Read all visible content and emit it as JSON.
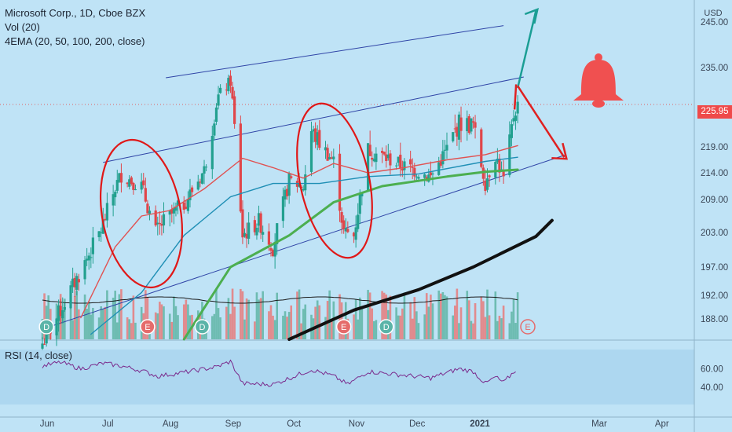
{
  "legend": {
    "symbol_line": "Microsoft Corp., 1D, Cboe BZX",
    "volume_line": "Vol (20)",
    "ema_line": "4EMA (20, 50, 100, 200, close)",
    "rsi_line": "RSI (14, close)"
  },
  "currency_label": "USD",
  "last_price_label": "225.95",
  "chart_data": [
    {
      "type": "candlestick",
      "panel": "price",
      "title": "Microsoft Corp., 1D, Cboe BZX",
      "x_ticks": [
        "Jun",
        "Jul",
        "Aug",
        "Sep",
        "Oct",
        "Nov",
        "Dec",
        "2021",
        "Mar",
        "Apr"
      ],
      "y_ticks": [
        188,
        192,
        197,
        203,
        209,
        214,
        219,
        225,
        235,
        245
      ],
      "y_tick_labels": [
        "188.00",
        "192.00",
        "197.00",
        "203.00",
        "209.00",
        "214.00",
        "219.00",
        "225.00",
        "235.00",
        "245.00"
      ],
      "ylim": [
        184,
        248
      ],
      "last_price": 225.95,
      "price_path": [
        {
          "x": "2020-06-01",
          "close": 183.2
        },
        {
          "x": "2020-06-10",
          "close": 189.5
        },
        {
          "x": "2020-06-20",
          "close": 196.3
        },
        {
          "x": "2020-06-30",
          "close": 203.5
        },
        {
          "x": "2020-07-07",
          "close": 211.2
        },
        {
          "x": "2020-07-10",
          "close": 213.7
        },
        {
          "x": "2020-07-20",
          "close": 211.5
        },
        {
          "x": "2020-07-27",
          "close": 203.0
        },
        {
          "x": "2020-07-31",
          "close": 205.0
        },
        {
          "x": "2020-08-10",
          "close": 208.2
        },
        {
          "x": "2020-08-20",
          "close": 214.5
        },
        {
          "x": "2020-08-27",
          "close": 228.0
        },
        {
          "x": "2020-09-02",
          "close": 231.6
        },
        {
          "x": "2020-09-08",
          "close": 202.5
        },
        {
          "x": "2020-09-16",
          "close": 205.0
        },
        {
          "x": "2020-09-23",
          "close": 200.5
        },
        {
          "x": "2020-10-01",
          "close": 212.5
        },
        {
          "x": "2020-10-08",
          "close": 211.5
        },
        {
          "x": "2020-10-12",
          "close": 221.4
        },
        {
          "x": "2020-10-16",
          "close": 219.7
        },
        {
          "x": "2020-10-23",
          "close": 216.2
        },
        {
          "x": "2020-10-28",
          "close": 203.0
        },
        {
          "x": "2020-11-02",
          "close": 202.5
        },
        {
          "x": "2020-11-09",
          "close": 218.4
        },
        {
          "x": "2020-11-16",
          "close": 217.2
        },
        {
          "x": "2020-11-27",
          "close": 215.2
        },
        {
          "x": "2020-12-04",
          "close": 214.3
        },
        {
          "x": "2020-12-10",
          "close": 213.2
        },
        {
          "x": "2020-12-18",
          "close": 218.6
        },
        {
          "x": "2020-12-24",
          "close": 222.7
        },
        {
          "x": "2020-12-31",
          "close": 222.4
        },
        {
          "x": "2021-01-06",
          "close": 212.2
        },
        {
          "x": "2021-01-11",
          "close": 217.5
        },
        {
          "x": "2021-01-15",
          "close": 212.6
        },
        {
          "x": "2021-01-20",
          "close": 224.0
        },
        {
          "x": "2021-01-22",
          "close": 225.95
        }
      ],
      "ema_series": [
        {
          "period": 20,
          "color": "#e05252",
          "values": [
            {
              "x": "2020-06-20",
              "close": 188.2
            },
            {
              "x": "2020-07-07",
              "close": 200.5
            },
            {
              "x": "2020-07-20",
              "close": 206.0
            },
            {
              "x": "2020-08-03",
              "close": 207.0
            },
            {
              "x": "2020-08-20",
              "close": 211.0
            },
            {
              "x": "2020-09-08",
              "close": 216.8
            },
            {
              "x": "2020-09-23",
              "close": 215.0
            },
            {
              "x": "2020-10-08",
              "close": 213.0
            },
            {
              "x": "2020-10-23",
              "close": 215.8
            },
            {
              "x": "2020-11-09",
              "close": 214.0
            },
            {
              "x": "2020-11-27",
              "close": 215.0
            },
            {
              "x": "2020-12-18",
              "close": 216.5
            },
            {
              "x": "2021-01-06",
              "close": 217.5
            },
            {
              "x": "2021-01-22",
              "close": 219.2
            }
          ]
        },
        {
          "period": 50,
          "color": "#1f8fb5",
          "values": [
            {
              "x": "2020-06-25",
              "close": 185.0
            },
            {
              "x": "2020-07-20",
              "close": 192.5
            },
            {
              "x": "2020-08-10",
              "close": 202.5
            },
            {
              "x": "2020-09-02",
              "close": 209.5
            },
            {
              "x": "2020-09-23",
              "close": 212.0
            },
            {
              "x": "2020-10-16",
              "close": 212.0
            },
            {
              "x": "2020-11-09",
              "close": 213.3
            },
            {
              "x": "2020-12-04",
              "close": 213.8
            },
            {
              "x": "2021-01-06",
              "close": 216.2
            },
            {
              "x": "2021-01-22",
              "close": 217.0
            }
          ]
        },
        {
          "period": 100,
          "color": "#4caf50",
          "values": [
            {
              "x": "2020-08-10",
              "close": 184.0
            },
            {
              "x": "2020-09-02",
              "close": 197.0
            },
            {
              "x": "2020-10-01",
              "close": 202.5
            },
            {
              "x": "2020-10-23",
              "close": 208.5
            },
            {
              "x": "2020-11-16",
              "close": 211.5
            },
            {
              "x": "2020-12-18",
              "close": 213.3
            },
            {
              "x": "2021-01-06",
              "close": 214.2
            },
            {
              "x": "2021-01-22",
              "close": 214.6
            }
          ]
        },
        {
          "period": 200,
          "color": "#111111",
          "values": [
            {
              "x": "2020-10-01",
              "close": 184.0
            },
            {
              "x": "2020-11-02",
              "close": 189.5
            },
            {
              "x": "2020-12-04",
              "close": 193.0
            },
            {
              "x": "2020-12-31",
              "close": 197.0
            },
            {
              "x": "2021-01-31",
              "close": 202.3
            },
            {
              "x": "2021-02-08",
              "close": 205.2
            }
          ]
        }
      ]
    },
    {
      "type": "bar",
      "panel": "volume",
      "title": "Vol (20)",
      "event_markers": [
        {
          "label": "D",
          "x": "2020-06-03"
        },
        {
          "label": "E",
          "x": "2020-07-23"
        },
        {
          "label": "D",
          "x": "2020-08-19"
        },
        {
          "label": "E",
          "x": "2020-10-28"
        },
        {
          "label": "D",
          "x": "2020-11-18"
        },
        {
          "label": "E",
          "x": "2021-01-27"
        }
      ]
    },
    {
      "type": "line",
      "panel": "rsi",
      "title": "RSI (14, close)",
      "y_ticks": [
        40,
        60
      ],
      "y_tick_labels": [
        "40.00",
        "60.00"
      ],
      "ylim": [
        28,
        70
      ],
      "band": [
        30,
        70
      ],
      "values": [
        {
          "x": "2020-06-01",
          "y": 63
        },
        {
          "x": "2020-06-10",
          "y": 67
        },
        {
          "x": "2020-06-20",
          "y": 60
        },
        {
          "x": "2020-07-01",
          "y": 66
        },
        {
          "x": "2020-07-10",
          "y": 63
        },
        {
          "x": "2020-07-20",
          "y": 58
        },
        {
          "x": "2020-07-28",
          "y": 52
        },
        {
          "x": "2020-08-10",
          "y": 56
        },
        {
          "x": "2020-08-26",
          "y": 62
        },
        {
          "x": "2020-09-02",
          "y": 68
        },
        {
          "x": "2020-09-08",
          "y": 44
        },
        {
          "x": "2020-09-23",
          "y": 43
        },
        {
          "x": "2020-10-12",
          "y": 59
        },
        {
          "x": "2020-10-23",
          "y": 52
        },
        {
          "x": "2020-10-30",
          "y": 43
        },
        {
          "x": "2020-11-09",
          "y": 57
        },
        {
          "x": "2020-11-27",
          "y": 53
        },
        {
          "x": "2020-12-10",
          "y": 50
        },
        {
          "x": "2020-12-24",
          "y": 60
        },
        {
          "x": "2020-12-31",
          "y": 57
        },
        {
          "x": "2021-01-06",
          "y": 44
        },
        {
          "x": "2021-01-11",
          "y": 51
        },
        {
          "x": "2021-01-15",
          "y": 45
        },
        {
          "x": "2021-01-22",
          "y": 61
        }
      ]
    }
  ],
  "annotations": {
    "channel_upper": [
      {
        "x": "2020-08-01",
        "y": 232.5
      },
      {
        "x": "2021-01-15",
        "y": 244.2
      }
    ],
    "channel_mid": [
      {
        "x": "2020-07-01",
        "y": 216.0
      },
      {
        "x": "2021-01-25",
        "y": 232.7
      }
    ],
    "channel_lower": [
      {
        "x": "2020-06-01",
        "y": 186.0
      },
      {
        "x": "2021-02-15",
        "y": 217.5
      }
    ],
    "bull_path": [
      {
        "x": "2021-01-22",
        "y": 230.0
      },
      {
        "x": "2021-01-31",
        "y": 247.5
      }
    ],
    "bear_path": [
      {
        "x": "2021-01-22",
        "y": 230.5
      },
      {
        "x": "2021-02-14",
        "y": 217.0
      }
    ]
  }
}
